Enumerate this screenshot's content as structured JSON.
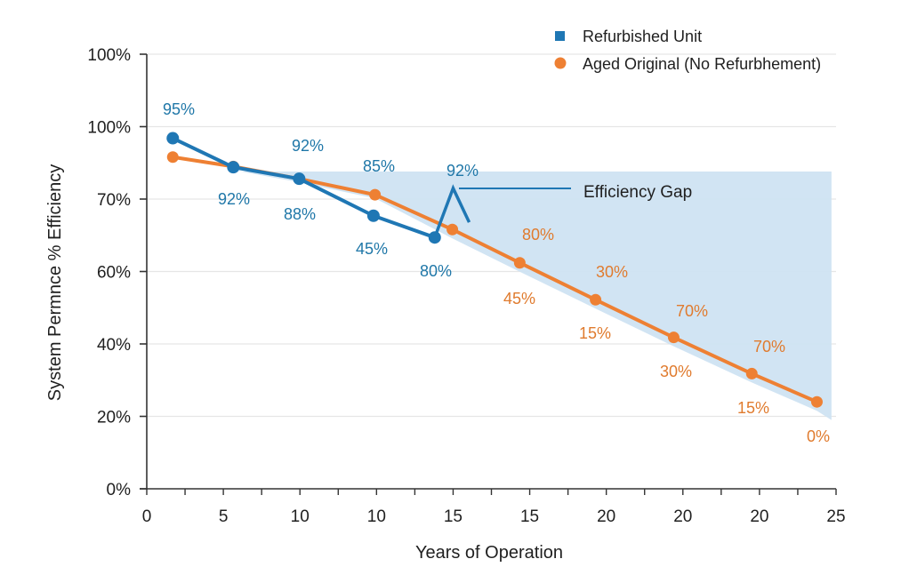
{
  "chart_data": {
    "type": "line",
    "title": "",
    "xlabel": "Years of Operation",
    "ylabel": "System Permnce % Efficiency",
    "x_tick_labels": [
      "0",
      "5",
      "10",
      "10",
      "15",
      "15",
      "20",
      "20",
      "20",
      "25"
    ],
    "y_tick_labels": [
      "0%",
      "20%",
      "40%",
      "60%",
      "70%",
      "100%",
      "100%"
    ],
    "x_range_positions": [
      0,
      9
    ],
    "y_range_positions": [
      0,
      6
    ],
    "grid": true,
    "legend_position": "top-right",
    "colors": {
      "refurbished": "#1f77b4",
      "aged": "#ee8033",
      "gap_fill": "#cfe3f2",
      "axis": "#333333",
      "grid": "#e6e6e6"
    },
    "series": [
      {
        "name": "Refurbished Unit",
        "marker": "square",
        "points": [
          {
            "x": 0.34,
            "y": 4.84,
            "label": "95%"
          },
          {
            "x": 1.13,
            "y": 4.44,
            "label": "92%"
          },
          {
            "x": 1.99,
            "y": 4.28,
            "label": "92%"
          },
          {
            "x": 2.96,
            "y": 3.77,
            "label": "88%"
          },
          {
            "x": 3.76,
            "y": 3.47,
            "label": "45%"
          }
        ],
        "extra_labels": [
          "85%",
          "80%"
        ],
        "spike": [
          {
            "x": 3.76,
            "y": 3.47
          },
          {
            "x": 4.0,
            "y": 4.15
          },
          {
            "x": 4.21,
            "y": 3.68
          }
        ],
        "spike_label": "92%"
      },
      {
        "name": "Aged Original (No Refurbhement)",
        "marker": "circle",
        "points": [
          {
            "x": 0.34,
            "y": 4.58
          },
          {
            "x": 1.13,
            "y": 4.45
          },
          {
            "x": 1.99,
            "y": 4.28
          },
          {
            "x": 2.98,
            "y": 4.06
          },
          {
            "x": 3.99,
            "y": 3.58
          },
          {
            "x": 4.87,
            "y": 3.12
          },
          {
            "x": 5.86,
            "y": 2.61
          },
          {
            "x": 6.88,
            "y": 2.09
          },
          {
            "x": 7.9,
            "y": 1.59
          },
          {
            "x": 8.75,
            "y": 1.2
          }
        ],
        "labels": [
          "80%",
          "45%",
          "30%",
          "15%",
          "70%",
          "30%",
          "70%",
          "15%",
          "0%"
        ]
      }
    ],
    "annotations": [
      {
        "text": "Efficiency Gap",
        "type": "shaded-region-callout"
      }
    ]
  }
}
